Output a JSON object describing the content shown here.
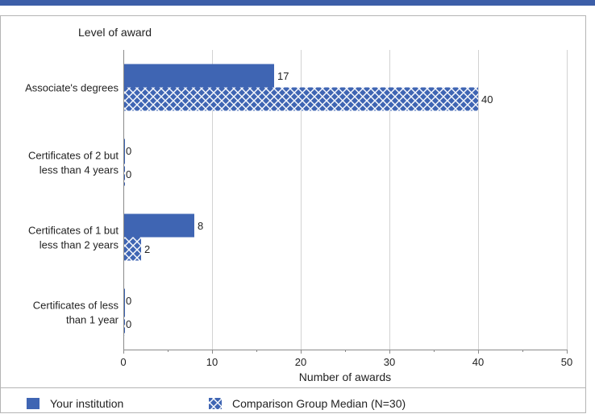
{
  "chart_data": {
    "type": "bar",
    "orientation": "horizontal",
    "title": "",
    "ylabel": "Level of award",
    "xlabel": "Number of awards",
    "xlim": [
      0,
      50
    ],
    "xticks": [
      0,
      10,
      20,
      30,
      40,
      50
    ],
    "grid": true,
    "legend_position": "bottom",
    "categories": [
      [
        "Associate's degrees"
      ],
      [
        "Certificates of 2 but",
        "less than 4 years"
      ],
      [
        "Certificates of 1 but",
        "less than 2 years"
      ],
      [
        "Certificates of less",
        "than 1 year"
      ]
    ],
    "series": [
      {
        "name": "Your institution",
        "values": [
          17,
          0,
          8,
          0
        ],
        "color": "#3F65B3",
        "pattern": "solid"
      },
      {
        "name": "Comparison Group Median (N=30)",
        "values": [
          40,
          0,
          2,
          0
        ],
        "color": "#3F65B3",
        "pattern": "crosshatch"
      }
    ]
  }
}
